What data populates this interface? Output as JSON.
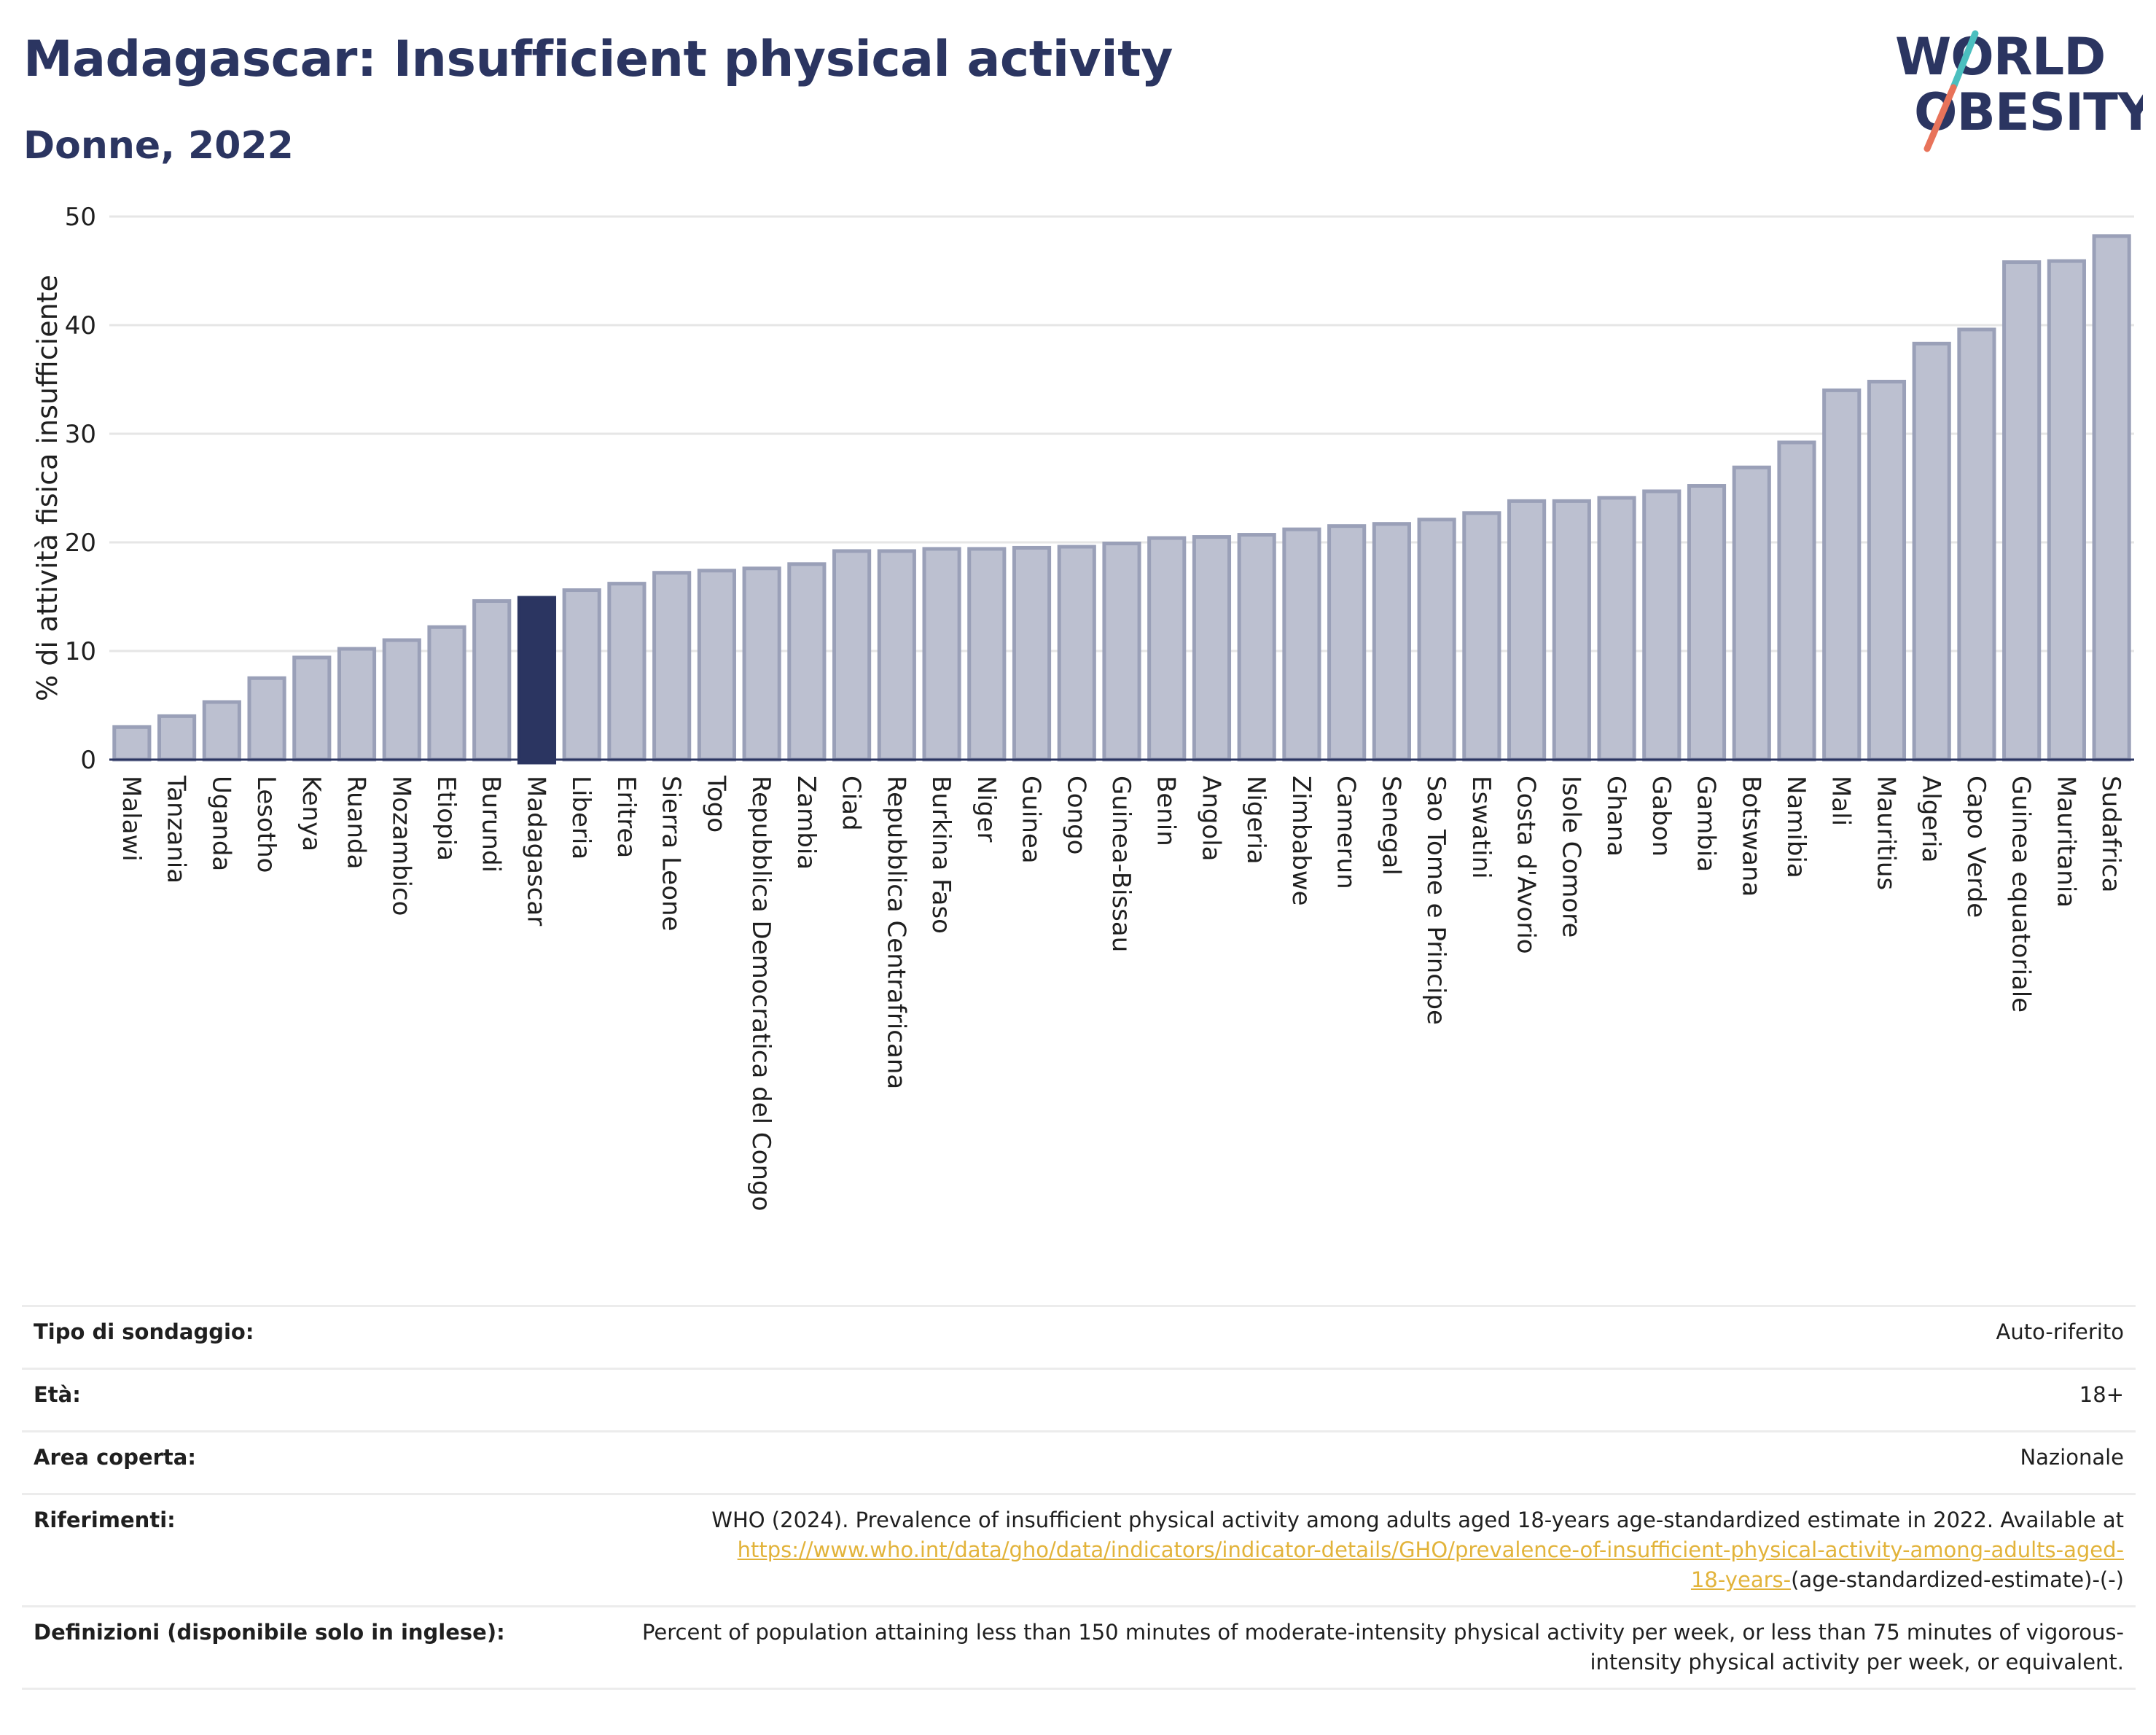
{
  "header": {
    "title": "Madagascar: Insufficient physical activity",
    "subtitle": "Donne, 2022"
  },
  "logo": {
    "line1": "WORLD",
    "line2": "OBESITY",
    "slash_color_top": "#4bbfbf",
    "slash_color_bottom": "#e8735a"
  },
  "colors": {
    "bar": "#bcc0d0",
    "bar_stroke": "#9aa0b8",
    "highlight": "#2b3561",
    "text": "#2b3561",
    "link": "#e2b33a"
  },
  "chart_data": {
    "type": "bar",
    "ylabel": "% di attività fisica insufficiente",
    "xlabel": "",
    "ylim": [
      0,
      50
    ],
    "yticks": [
      0,
      10,
      20,
      30,
      40,
      50
    ],
    "grid": true,
    "highlight": "Madagascar",
    "categories": [
      "Malawi",
      "Tanzania",
      "Uganda",
      "Lesotho",
      "Kenya",
      "Ruanda",
      "Mozambico",
      "Etiopia",
      "Burundi",
      "Madagascar",
      "Liberia",
      "Eritrea",
      "Sierra Leone",
      "Togo",
      "Repubblica Democratica del Congo",
      "Zambia",
      "Ciad",
      "Repubblica Centrafricana",
      "Burkina Faso",
      "Niger",
      "Guinea",
      "Congo",
      "Guinea-Bissau",
      "Benin",
      "Angola",
      "Nigeria",
      "Zimbabwe",
      "Camerun",
      "Senegal",
      "Sao Tome e Principe",
      "Eswatini",
      "Costa d'Avorio",
      "Isole Comore",
      "Ghana",
      "Gabon",
      "Gambia",
      "Botswana",
      "Namibia",
      "Mali",
      "Mauritius",
      "Algeria",
      "Capo Verde",
      "Guinea equatoriale",
      "Mauritania",
      "Sudafrica"
    ],
    "values": [
      3.0,
      4.0,
      5.3,
      7.5,
      9.4,
      10.2,
      11.0,
      12.2,
      14.6,
      14.9,
      15.6,
      16.2,
      17.2,
      17.4,
      17.6,
      18.0,
      19.2,
      19.2,
      19.4,
      19.4,
      19.5,
      19.6,
      19.9,
      20.4,
      20.5,
      20.7,
      21.2,
      21.5,
      21.7,
      22.1,
      22.7,
      23.8,
      23.8,
      24.1,
      24.7,
      25.2,
      26.9,
      29.2,
      34.0,
      34.8,
      38.3,
      39.6,
      45.8,
      45.9,
      48.2
    ]
  },
  "info": {
    "survey_type_label": "Tipo di sondaggio:",
    "survey_type_value": "Auto-riferito",
    "age_label": "Età:",
    "age_value": "18+",
    "coverage_label": "Area coperta:",
    "coverage_value": "Nazionale",
    "references_label": "Riferimenti:",
    "references_text": "WHO (2024). Prevalence of insufficient physical activity among adults aged 18-years age-standardized estimate in 2022. Available at",
    "references_link_line1": "https://www.who.int/data/gho/data/indicators/indicator-details/GHO/prevalence-of-insufficient-physical-activity-among-adults-aged-",
    "references_link_line2": "18-years-",
    "references_suffix": "(age-standardized-estimate)-(-)",
    "definitions_label": "Definizioni (disponibile solo in inglese):",
    "definitions_text": "Percent of population attaining less than 150 minutes of moderate-intensity physical activity per week, or less than 75 minutes of vigorous-intensity physical activity per week, or equivalent."
  }
}
